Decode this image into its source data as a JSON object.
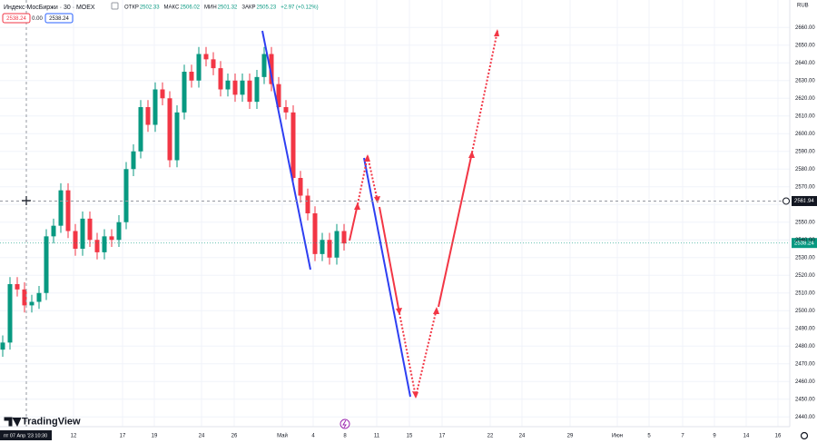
{
  "chart_data": {
    "type": "candlestick",
    "title": "Индекс МосБиржи · 30 · MOEX",
    "ohlc": [
      {
        "label": "ОТКР",
        "value": "2502.33"
      },
      {
        "label": "МАКС",
        "value": "2506.02"
      },
      {
        "label": "МИН",
        "value": "2501.32"
      },
      {
        "label": "ЗАКР",
        "value": "2505.23"
      }
    ],
    "change": "+2.97 (+0.12%)",
    "info_boxes": [
      "2538.24",
      "0.00",
      "2538.24"
    ],
    "currency": "RUB",
    "crosshair_price": {
      "value": 2561.94,
      "label": "2561.94"
    },
    "last_price": {
      "value": 2538.24,
      "label": "2538.24"
    },
    "crosshair_time": "пт 07 Апр '23  10:30",
    "brand": "TradingView",
    "x_labels": [
      "12",
      "17",
      "19",
      "24",
      "26",
      "Май",
      "4",
      "8",
      "11",
      "15",
      "17",
      "22",
      "24",
      "29",
      "Июн",
      "5",
      "7",
      "9",
      "14",
      "16"
    ],
    "up_color": "#089981",
    "down_color": "#f23645",
    "ylim": [
      2435,
      2675
    ],
    "yticks": [
      {
        "value": 2440,
        "label": "2440.00"
      },
      {
        "value": 2450,
        "label": "2450.00"
      },
      {
        "value": 2460,
        "label": "2460.00"
      },
      {
        "value": 2470,
        "label": "2470.00"
      },
      {
        "value": 2480,
        "label": "2480.00"
      },
      {
        "value": 2490,
        "label": "2490.00"
      },
      {
        "value": 2500,
        "label": "2500.00"
      },
      {
        "value": 2510,
        "label": "2510.00"
      },
      {
        "value": 2520,
        "label": "2520.00"
      },
      {
        "value": 2530,
        "label": "2530.00"
      },
      {
        "value": 2540,
        "label": "2540.00"
      },
      {
        "value": 2550,
        "label": "2550.00"
      },
      {
        "value": 2560,
        "label": "2560.00"
      },
      {
        "value": 2570,
        "label": "2570.00"
      },
      {
        "value": 2580,
        "label": "2580.00"
      },
      {
        "value": 2590,
        "label": "2590.00"
      },
      {
        "value": 2600,
        "label": "2600.00"
      },
      {
        "value": 2610,
        "label": "2610.00"
      },
      {
        "value": 2620,
        "label": "2620.00"
      },
      {
        "value": 2630,
        "label": "2630.00"
      },
      {
        "value": 2640,
        "label": "2640.00"
      },
      {
        "value": 2650,
        "label": "2650.00"
      },
      {
        "value": 2660,
        "label": "2660.00"
      }
    ],
    "grid": true,
    "open": [
      2478,
      2482,
      2515,
      2512,
      2503,
      2505,
      2510,
      2542,
      2548,
      2568,
      2545,
      2535,
      2552,
      2540,
      2533,
      2542,
      2540,
      2550,
      2580,
      2590,
      2615,
      2605,
      2625,
      2620,
      2585,
      2612,
      2635,
      2630,
      2645,
      2642,
      2637,
      2625,
      2630,
      2622,
      2630,
      2618,
      2632,
      2645,
      2628,
      2615,
      2612,
      2575,
      2565,
      2555,
      2532,
      2540,
      2530,
      2545
    ],
    "high": [
      2486,
      2519,
      2519,
      2516,
      2509,
      2514,
      2546,
      2552,
      2572,
      2572,
      2549,
      2556,
      2556,
      2544,
      2546,
      2546,
      2554,
      2584,
      2594,
      2619,
      2619,
      2629,
      2629,
      2624,
      2616,
      2639,
      2639,
      2649,
      2649,
      2646,
      2641,
      2634,
      2634,
      2634,
      2634,
      2636,
      2649,
      2649,
      2632,
      2619,
      2616,
      2579,
      2569,
      2559,
      2544,
      2544,
      2549,
      2549
    ],
    "low": [
      2474,
      2478,
      2508,
      2499,
      2499,
      2501,
      2506,
      2538,
      2544,
      2541,
      2531,
      2531,
      2536,
      2529,
      2529,
      2536,
      2536,
      2546,
      2576,
      2586,
      2601,
      2601,
      2616,
      2581,
      2581,
      2608,
      2626,
      2626,
      2638,
      2633,
      2621,
      2621,
      2618,
      2618,
      2614,
      2614,
      2628,
      2624,
      2611,
      2608,
      2571,
      2561,
      2551,
      2528,
      2528,
      2526,
      2526,
      2534
    ],
    "close": [
      2482,
      2515,
      2512,
      2503,
      2505,
      2510,
      2542,
      2548,
      2568,
      2545,
      2535,
      2552,
      2540,
      2533,
      2542,
      2540,
      2550,
      2580,
      2590,
      2615,
      2605,
      2625,
      2620,
      2585,
      2612,
      2635,
      2630,
      2645,
      2642,
      2637,
      2625,
      2630,
      2622,
      2630,
      2618,
      2632,
      2645,
      2628,
      2615,
      2612,
      2575,
      2565,
      2555,
      2532,
      2540,
      2530,
      2545,
      2538
    ]
  }
}
